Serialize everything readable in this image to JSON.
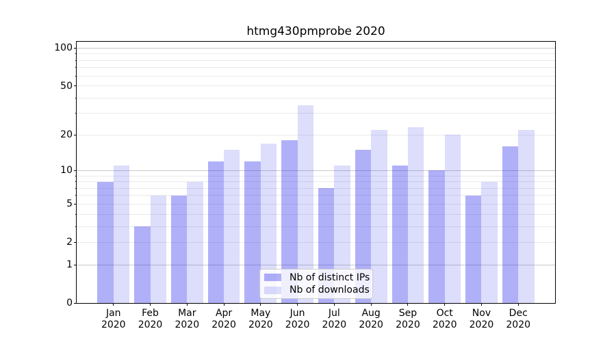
{
  "title": "htmg430pmprobe 2020",
  "chart_data": {
    "type": "bar",
    "title": "htmg430pmprobe 2020",
    "categories": [
      "Jan",
      "Feb",
      "Mar",
      "Apr",
      "May",
      "Jun",
      "Jul",
      "Aug",
      "Sep",
      "Oct",
      "Nov",
      "Dec"
    ],
    "category_sublabel": "2020",
    "series": [
      {
        "name": "Nb of distinct IPs",
        "color": "rgba(30,30,235,0.35)",
        "color_hex_on_white": "#a8a8f3",
        "values": [
          8,
          3,
          6,
          12,
          12,
          18,
          7,
          15,
          11,
          10,
          6,
          16
        ]
      },
      {
        "name": "Nb of downloads",
        "color": "rgba(30,30,235,0.15)",
        "color_hex_on_white": "#dadafa",
        "values": [
          11,
          6,
          8,
          15,
          17,
          35,
          11,
          22,
          23,
          20,
          8,
          22
        ]
      }
    ],
    "yscale": "log1p",
    "ylim": [
      0,
      112.6
    ],
    "y_tick_values": [
      0,
      1,
      2,
      5,
      10,
      20,
      50,
      100
    ],
    "y_major_grid": [
      1,
      10,
      100
    ],
    "y_minor_grid": [
      2,
      3,
      4,
      5,
      6,
      7,
      8,
      9,
      20,
      30,
      40,
      50,
      60,
      70,
      80,
      90
    ],
    "grid": "on",
    "legend_position": "lower center",
    "xlabel": "",
    "ylabel": ""
  },
  "colors": {
    "bar_ips": "rgba(30,30,235,0.35)",
    "bar_downloads": "rgba(30,30,235,0.15)",
    "grid_major": "#c9c9c9",
    "grid_minor": "#eaeaea",
    "spine": "#000000",
    "text": "#000000",
    "legend_border": "#cccccc",
    "legend_bg": "rgba(255,255,255,0.8)"
  }
}
